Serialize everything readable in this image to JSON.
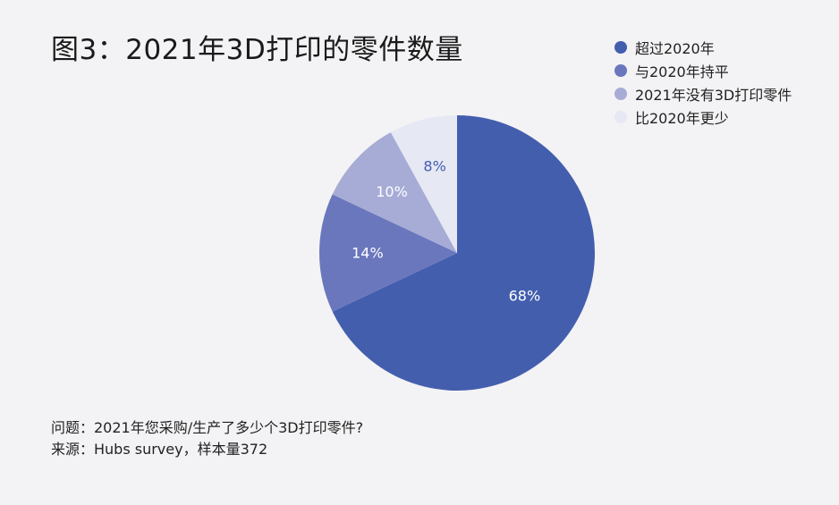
{
  "chart_data": {
    "type": "pie",
    "title": "图3：2021年3D打印的零件数量",
    "categories": [
      "超过2020年",
      "与2020年持平",
      "2021年没有3D打印零件",
      "比2020年更少"
    ],
    "values": [
      68,
      14,
      10,
      8
    ],
    "value_labels": [
      "68%",
      "14%",
      "10%",
      "8%"
    ],
    "colors": [
      "#445eae",
      "#6a77bd",
      "#a6acd6",
      "#e6e8f4"
    ],
    "label_colors": [
      "#ffffff",
      "#ffffff",
      "#ffffff",
      "#445eae"
    ],
    "start_angle_deg": 0,
    "direction": "clockwise",
    "legend_position": "top-right"
  },
  "notes": {
    "question": "问题：2021年您采购/生产了多少个3D打印零件?",
    "source": "来源：Hubs survey，样本量372"
  }
}
